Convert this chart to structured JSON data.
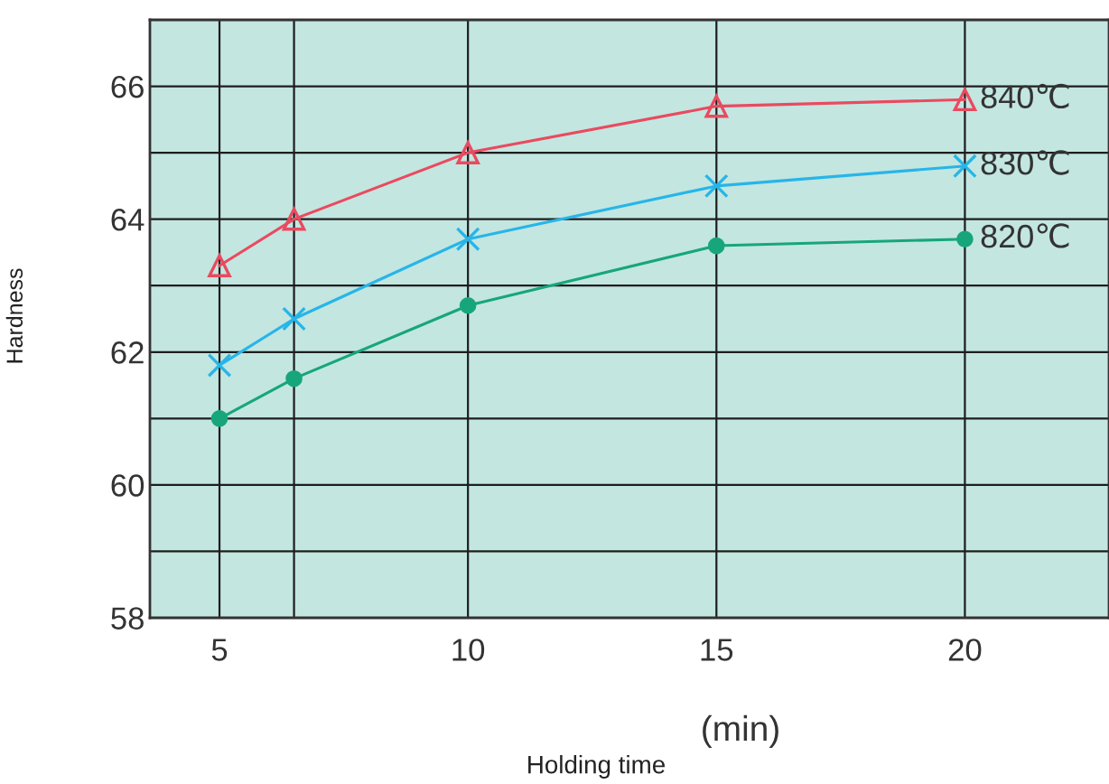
{
  "chart_data": {
    "type": "line",
    "xlabel": "Holding time",
    "ylabel": "Hardness",
    "annotations": [
      "(min)"
    ],
    "x": [
      5,
      6.5,
      10,
      15,
      20
    ],
    "series": [
      {
        "name": "840℃",
        "color": "#ea4a5f",
        "marker": "triangle",
        "values": [
          63.3,
          64.0,
          65.0,
          65.7,
          65.8
        ]
      },
      {
        "name": "830℃",
        "color": "#27b5e8",
        "marker": "cross",
        "values": [
          61.8,
          62.5,
          63.7,
          64.5,
          64.8
        ]
      },
      {
        "name": "820℃",
        "color": "#17a67a",
        "marker": "circle",
        "values": [
          61.0,
          61.6,
          62.7,
          63.6,
          63.7
        ]
      }
    ],
    "xlim": [
      3.6,
      22.9
    ],
    "xticks": [
      5,
      {
        "value": 6.5,
        "label": null
      },
      10,
      15,
      20
    ],
    "ylim": [
      58,
      67
    ],
    "yticks": [
      58,
      {
        "value": 59,
        "label": null
      },
      60,
      {
        "value": 61,
        "label": null
      },
      62,
      {
        "value": 63,
        "label": null
      },
      64,
      {
        "value": 65,
        "label": null
      },
      66
    ],
    "grid": true
  }
}
